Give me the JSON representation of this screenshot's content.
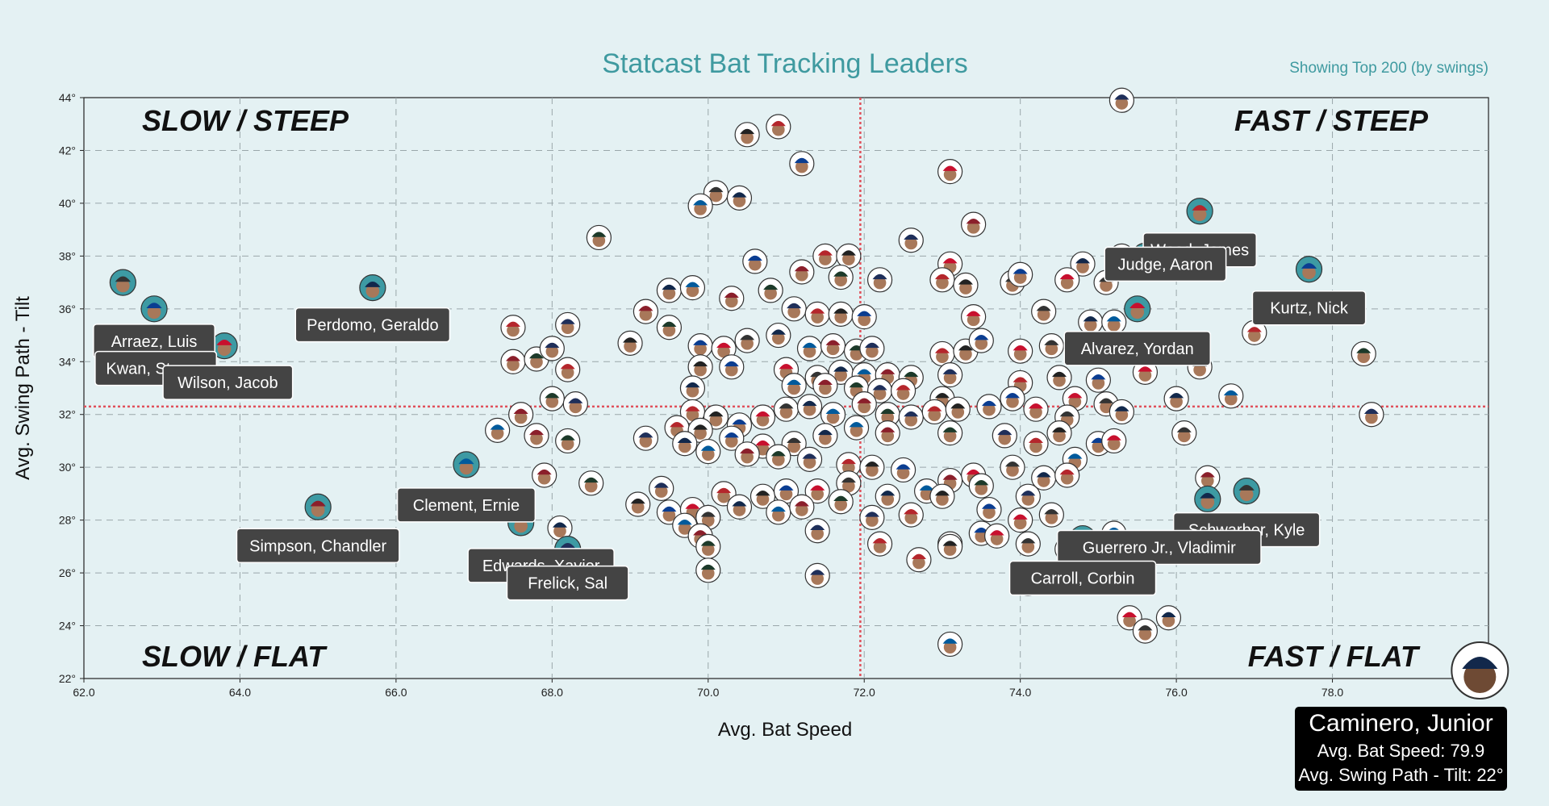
{
  "chart_data": {
    "type": "scatter",
    "title": "Statcast Bat Tracking Leaders",
    "subtitle": "Showing Top 200 (by swings)",
    "xlabel": "Avg. Bat Speed",
    "ylabel": "Avg. Swing Path - Tilt",
    "xlim": [
      62.0,
      80.0
    ],
    "ylim": [
      22,
      44
    ],
    "x_ticks": [
      "62.0",
      "64.0",
      "66.0",
      "68.0",
      "70.0",
      "72.0",
      "74.0",
      "76.0",
      "78.0"
    ],
    "y_ticks": [
      "22°",
      "24°",
      "26°",
      "28°",
      "30°",
      "32°",
      "34°",
      "36°",
      "38°",
      "40°",
      "42°",
      "44°"
    ],
    "grid": true,
    "reference_lines": {
      "x": 71.95,
      "y": 32.3
    },
    "quadrant_labels": {
      "top_left": "SLOW / STEEP",
      "top_right": "FAST / STEEP",
      "bottom_left": "SLOW / FLAT",
      "bottom_right": "FAST / FLAT"
    },
    "labeled_players": [
      {
        "name": "Arraez, Luis",
        "x": 62.9,
        "y": 36.0
      },
      {
        "name": "Kwan, Steven",
        "x": 63.8,
        "y": 34.6
      },
      {
        "name": "Wilson, Jacob",
        "x": 62.5,
        "y": 37.0
      },
      {
        "name": "Perdomo, Geraldo",
        "x": 65.7,
        "y": 36.8
      },
      {
        "name": "Clement, Ernie",
        "x": 66.9,
        "y": 30.1
      },
      {
        "name": "Simpson, Chandler",
        "x": 65.0,
        "y": 28.5
      },
      {
        "name": "Edwards, Xavier",
        "x": 67.6,
        "y": 27.9
      },
      {
        "name": "Frelick, Sal",
        "x": 68.2,
        "y": 26.9
      },
      {
        "name": "Wood, James",
        "x": 76.3,
        "y": 39.7
      },
      {
        "name": "Judge, Aaron",
        "x": 75.6,
        "y": 38.0
      },
      {
        "name": "Kurtz, Nick",
        "x": 77.7,
        "y": 37.5
      },
      {
        "name": "Alvarez, Yordan",
        "x": 75.5,
        "y": 36.0
      },
      {
        "name": "Schwarber, Kyle",
        "x": 76.9,
        "y": 29.1
      },
      {
        "name": "Guerrero Jr., Vladimir",
        "x": 76.4,
        "y": 28.8
      },
      {
        "name": "Carroll, Corbin",
        "x": 74.8,
        "y": 27.3
      }
    ],
    "hovered_player": {
      "name": "Caminero, Junior",
      "x": 79.9,
      "y": 22
    },
    "other_players": [
      [
        75.3,
        43.9
      ],
      [
        70.9,
        42.9
      ],
      [
        70.5,
        42.6
      ],
      [
        71.2,
        41.5
      ],
      [
        73.1,
        41.2
      ],
      [
        70.1,
        40.4
      ],
      [
        70.4,
        40.2
      ],
      [
        69.9,
        39.9
      ],
      [
        73.4,
        39.2
      ],
      [
        68.6,
        38.7
      ],
      [
        72.6,
        38.6
      ],
      [
        71.5,
        38.0
      ],
      [
        71.8,
        38.0
      ],
      [
        70.6,
        37.8
      ],
      [
        73.1,
        37.7
      ],
      [
        73.9,
        37.0
      ],
      [
        74.8,
        37.7
      ],
      [
        75.3,
        38.0
      ],
      [
        71.2,
        37.4
      ],
      [
        71.7,
        37.2
      ],
      [
        72.2,
        37.1
      ],
      [
        73.0,
        37.1
      ],
      [
        73.3,
        36.9
      ],
      [
        74.0,
        37.3
      ],
      [
        74.6,
        37.1
      ],
      [
        75.1,
        37.0
      ],
      [
        69.5,
        36.7
      ],
      [
        69.8,
        36.8
      ],
      [
        70.3,
        36.4
      ],
      [
        70.8,
        36.7
      ],
      [
        71.1,
        36.0
      ],
      [
        71.4,
        35.8
      ],
      [
        71.7,
        35.8
      ],
      [
        72.0,
        35.7
      ],
      [
        73.4,
        35.7
      ],
      [
        74.3,
        35.9
      ],
      [
        74.9,
        35.5
      ],
      [
        75.2,
        35.5
      ],
      [
        69.2,
        35.9
      ],
      [
        69.5,
        35.3
      ],
      [
        68.2,
        35.4
      ],
      [
        67.5,
        35.3
      ],
      [
        69.0,
        34.7
      ],
      [
        69.9,
        34.6
      ],
      [
        70.2,
        34.5
      ],
      [
        70.5,
        34.8
      ],
      [
        70.9,
        35.0
      ],
      [
        71.3,
        34.5
      ],
      [
        71.6,
        34.6
      ],
      [
        71.9,
        34.4
      ],
      [
        72.1,
        34.5
      ],
      [
        73.0,
        34.3
      ],
      [
        73.3,
        34.4
      ],
      [
        73.5,
        34.8
      ],
      [
        74.0,
        34.4
      ],
      [
        74.4,
        34.6
      ],
      [
        75.0,
        34.5
      ],
      [
        75.4,
        34.5
      ],
      [
        67.5,
        34.0
      ],
      [
        67.8,
        34.1
      ],
      [
        68.0,
        34.5
      ],
      [
        68.2,
        33.7
      ],
      [
        69.9,
        33.8
      ],
      [
        70.3,
        33.8
      ],
      [
        71.0,
        33.7
      ],
      [
        71.4,
        33.4
      ],
      [
        71.7,
        33.6
      ],
      [
        72.0,
        33.5
      ],
      [
        72.3,
        33.5
      ],
      [
        72.6,
        33.4
      ],
      [
        73.1,
        33.5
      ],
      [
        74.0,
        33.2
      ],
      [
        74.5,
        33.4
      ],
      [
        75.0,
        33.3
      ],
      [
        75.6,
        33.6
      ],
      [
        76.3,
        33.8
      ],
      [
        69.8,
        33.0
      ],
      [
        71.1,
        33.1
      ],
      [
        71.5,
        33.1
      ],
      [
        71.9,
        33.0
      ],
      [
        72.2,
        32.9
      ],
      [
        72.5,
        32.9
      ],
      [
        73.0,
        32.6
      ],
      [
        73.9,
        32.6
      ],
      [
        74.7,
        32.6
      ],
      [
        75.1,
        32.4
      ],
      [
        76.0,
        32.6
      ],
      [
        76.7,
        32.7
      ],
      [
        67.6,
        32.0
      ],
      [
        68.0,
        32.6
      ],
      [
        68.3,
        32.4
      ],
      [
        69.8,
        32.1
      ],
      [
        70.1,
        31.9
      ],
      [
        70.4,
        31.6
      ],
      [
        70.7,
        31.9
      ],
      [
        71.0,
        32.2
      ],
      [
        71.3,
        32.3
      ],
      [
        71.6,
        32.0
      ],
      [
        72.0,
        32.4
      ],
      [
        72.3,
        32.0
      ],
      [
        72.6,
        31.9
      ],
      [
        72.9,
        32.1
      ],
      [
        73.2,
        32.2
      ],
      [
        73.6,
        32.3
      ],
      [
        74.2,
        32.2
      ],
      [
        74.6,
        31.9
      ],
      [
        75.3,
        32.1
      ],
      [
        67.3,
        31.4
      ],
      [
        67.8,
        31.2
      ],
      [
        68.2,
        31.0
      ],
      [
        69.2,
        31.1
      ],
      [
        69.6,
        31.5
      ],
      [
        69.9,
        31.4
      ],
      [
        70.3,
        31.1
      ],
      [
        70.7,
        30.8
      ],
      [
        71.1,
        30.9
      ],
      [
        71.5,
        31.2
      ],
      [
        71.9,
        31.5
      ],
      [
        72.3,
        31.3
      ],
      [
        73.1,
        31.3
      ],
      [
        73.8,
        31.2
      ],
      [
        74.2,
        30.9
      ],
      [
        74.5,
        31.3
      ],
      [
        75.0,
        30.9
      ],
      [
        75.2,
        31.0
      ],
      [
        76.1,
        31.3
      ],
      [
        69.7,
        30.9
      ],
      [
        70.0,
        30.6
      ],
      [
        70.5,
        30.5
      ],
      [
        70.9,
        30.4
      ],
      [
        71.3,
        30.3
      ],
      [
        71.8,
        30.1
      ],
      [
        72.1,
        30.0
      ],
      [
        72.5,
        29.9
      ],
      [
        73.4,
        29.7
      ],
      [
        73.9,
        30.0
      ],
      [
        74.3,
        29.6
      ],
      [
        74.7,
        30.3
      ],
      [
        67.9,
        29.7
      ],
      [
        68.5,
        29.4
      ],
      [
        69.4,
        29.2
      ],
      [
        70.2,
        29.0
      ],
      [
        70.7,
        28.9
      ],
      [
        71.0,
        29.1
      ],
      [
        71.4,
        29.1
      ],
      [
        71.8,
        29.4
      ],
      [
        72.3,
        28.9
      ],
      [
        72.8,
        29.1
      ],
      [
        73.1,
        29.5
      ],
      [
        73.5,
        29.3
      ],
      [
        74.1,
        28.9
      ],
      [
        74.6,
        29.7
      ],
      [
        69.1,
        28.6
      ],
      [
        69.5,
        28.3
      ],
      [
        69.8,
        28.4
      ],
      [
        70.0,
        28.1
      ],
      [
        70.4,
        28.5
      ],
      [
        70.9,
        28.3
      ],
      [
        71.2,
        28.5
      ],
      [
        71.7,
        28.7
      ],
      [
        72.1,
        28.1
      ],
      [
        72.6,
        28.2
      ],
      [
        73.0,
        28.9
      ],
      [
        73.6,
        28.4
      ],
      [
        74.0,
        28.0
      ],
      [
        74.4,
        28.2
      ],
      [
        68.1,
        27.7
      ],
      [
        69.7,
        27.8
      ],
      [
        69.9,
        27.4
      ],
      [
        70.0,
        27.0
      ],
      [
        71.4,
        27.6
      ],
      [
        72.2,
        27.1
      ],
      [
        73.1,
        27.1
      ],
      [
        73.5,
        27.5
      ],
      [
        73.7,
        27.4
      ],
      [
        74.1,
        27.1
      ],
      [
        74.6,
        26.9
      ],
      [
        75.2,
        27.5
      ],
      [
        75.6,
        26.5
      ],
      [
        70.0,
        26.1
      ],
      [
        71.4,
        25.9
      ],
      [
        72.7,
        26.5
      ],
      [
        73.1,
        27.0
      ],
      [
        74.1,
        25.6
      ],
      [
        75.4,
        24.3
      ],
      [
        75.6,
        23.8
      ],
      [
        75.9,
        24.3
      ],
      [
        73.1,
        23.3
      ],
      [
        76.4,
        29.6
      ],
      [
        78.4,
        34.3
      ],
      [
        78.5,
        32.0
      ],
      [
        77.0,
        35.1
      ]
    ]
  }
}
